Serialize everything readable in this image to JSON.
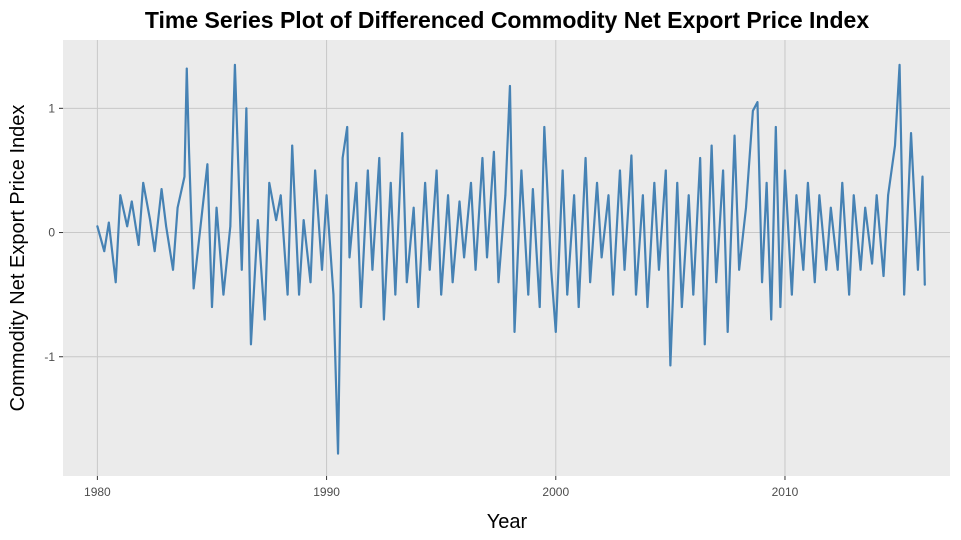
{
  "chart_data": {
    "type": "line",
    "title": "Time Series Plot of Differenced Commodity Net Export Price Index",
    "xlabel": "Year",
    "ylabel": "Commodity Net Export Price Index",
    "xlim": [
      1978.5,
      2017.2
    ],
    "ylim": [
      -1.96,
      1.55
    ],
    "x_ticks": [
      1980,
      1990,
      2000,
      2010
    ],
    "x_tick_labels": [
      "1980",
      "1990",
      "2000",
      "2010"
    ],
    "y_ticks": [
      -1,
      0,
      1
    ],
    "y_tick_labels": [
      "-1",
      "0",
      "1"
    ],
    "grid": true,
    "legend": "none",
    "colors": {
      "line": "#4682b4",
      "panel": "#ebebeb",
      "grid": "#c8c8c8"
    },
    "series": [
      {
        "x": [
          1980.0,
          1980.3,
          1980.5,
          1980.8,
          1981.0,
          1981.3,
          1981.5,
          1981.8,
          1982.0,
          1982.3,
          1982.5,
          1982.8,
          1983.0,
          1983.3,
          1983.5,
          1983.8,
          1983.9,
          1984.0,
          1984.2,
          1984.5,
          1984.8,
          1985.0,
          1985.2,
          1985.5,
          1985.8,
          1986.0,
          1986.1,
          1986.3,
          1986.5,
          1986.7,
          1987.0,
          1987.3,
          1987.5,
          1987.8,
          1988.0,
          1988.3,
          1988.5,
          1988.8,
          1989.0,
          1989.3,
          1989.5,
          1989.8,
          1990.0,
          1990.3,
          1990.5,
          1990.7,
          1990.9,
          1991.0,
          1991.3,
          1991.5,
          1991.8,
          1992.0,
          1992.3,
          1992.5,
          1992.8,
          1993.0,
          1993.3,
          1993.5,
          1993.8,
          1994.0,
          1994.3,
          1994.5,
          1994.8,
          1995.0,
          1995.3,
          1995.5,
          1995.8,
          1996.0,
          1996.3,
          1996.5,
          1996.8,
          1997.0,
          1997.3,
          1997.5,
          1997.8,
          1998.0,
          1998.2,
          1998.5,
          1998.8,
          1999.0,
          1999.3,
          1999.5,
          1999.8,
          2000.0,
          2000.3,
          2000.5,
          2000.8,
          2001.0,
          2001.3,
          2001.5,
          2001.8,
          2002.0,
          2002.3,
          2002.5,
          2002.8,
          2003.0,
          2003.3,
          2003.5,
          2003.8,
          2004.0,
          2004.3,
          2004.5,
          2004.8,
          2005.0,
          2005.3,
          2005.5,
          2005.8,
          2006.0,
          2006.3,
          2006.5,
          2006.8,
          2007.0,
          2007.3,
          2007.5,
          2007.8,
          2008.0,
          2008.3,
          2008.6,
          2008.8,
          2009.0,
          2009.2,
          2009.4,
          2009.6,
          2009.8,
          2010.0,
          2010.3,
          2010.5,
          2010.8,
          2011.0,
          2011.3,
          2011.5,
          2011.8,
          2012.0,
          2012.3,
          2012.5,
          2012.8,
          2013.0,
          2013.3,
          2013.5,
          2013.8,
          2014.0,
          2014.3,
          2014.5,
          2014.8,
          2015.0,
          2015.2,
          2015.5,
          2015.8,
          2016.0,
          2016.1
        ],
        "y": [
          0.05,
          -0.15,
          0.08,
          -0.4,
          0.3,
          0.05,
          0.25,
          -0.1,
          0.4,
          0.1,
          -0.15,
          0.35,
          0.05,
          -0.3,
          0.2,
          0.45,
          1.32,
          0.65,
          -0.45,
          0.05,
          0.55,
          -0.6,
          0.2,
          -0.5,
          0.05,
          1.35,
          0.8,
          -0.3,
          1.0,
          -0.9,
          0.1,
          -0.7,
          0.4,
          0.1,
          0.3,
          -0.5,
          0.7,
          -0.5,
          0.1,
          -0.4,
          0.5,
          -0.3,
          0.3,
          -0.5,
          -1.78,
          0.6,
          0.85,
          -0.2,
          0.4,
          -0.6,
          0.5,
          -0.3,
          0.6,
          -0.7,
          0.4,
          -0.5,
          0.8,
          -0.4,
          0.2,
          -0.6,
          0.4,
          -0.3,
          0.5,
          -0.5,
          0.3,
          -0.4,
          0.25,
          -0.2,
          0.4,
          -0.3,
          0.6,
          -0.2,
          0.65,
          -0.4,
          0.3,
          1.18,
          -0.8,
          0.5,
          -0.5,
          0.35,
          -0.6,
          0.85,
          -0.3,
          -0.8,
          0.5,
          -0.5,
          0.3,
          -0.6,
          0.6,
          -0.4,
          0.4,
          -0.2,
          0.3,
          -0.5,
          0.5,
          -0.3,
          0.62,
          -0.5,
          0.3,
          -0.6,
          0.4,
          -0.3,
          0.5,
          -1.07,
          0.4,
          -0.6,
          0.3,
          -0.5,
          0.6,
          -0.9,
          0.7,
          -0.4,
          0.5,
          -0.8,
          0.78,
          -0.3,
          0.2,
          0.98,
          1.05,
          -0.4,
          0.4,
          -0.7,
          0.85,
          -0.6,
          0.5,
          -0.5,
          0.3,
          -0.3,
          0.4,
          -0.4,
          0.3,
          -0.3,
          0.2,
          -0.3,
          0.4,
          -0.5,
          0.3,
          -0.3,
          0.2,
          -0.25,
          0.3,
          -0.35,
          0.3,
          0.7,
          1.35,
          -0.5,
          0.8,
          -0.3,
          0.45,
          -0.42
        ]
      }
    ]
  }
}
